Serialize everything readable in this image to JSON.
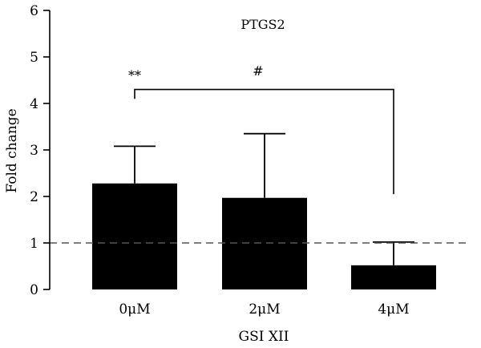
{
  "chart_data": {
    "type": "bar",
    "title": "PTGS2",
    "xlabel": "GSI XII",
    "ylabel": "Fold change",
    "categories": [
      "0μM",
      "2μM",
      "4μM"
    ],
    "values": [
      2.28,
      1.97,
      0.52
    ],
    "error_upper": [
      3.08,
      3.35,
      1.02
    ],
    "ylim": [
      0,
      6
    ],
    "yticks": [
      "0",
      "1",
      "2",
      "3",
      "4",
      "5",
      "6"
    ],
    "reference_line": 1,
    "grid": false,
    "significance": [
      {
        "label": "**",
        "from_category": 0,
        "to_category": 2,
        "bracket_y": 4.3,
        "left_drop_to": 4.1,
        "right_drop_to": 2.05
      },
      {
        "label": "#"
      }
    ],
    "colors": {
      "bar": "#000000",
      "reference_line": "#555555"
    }
  }
}
